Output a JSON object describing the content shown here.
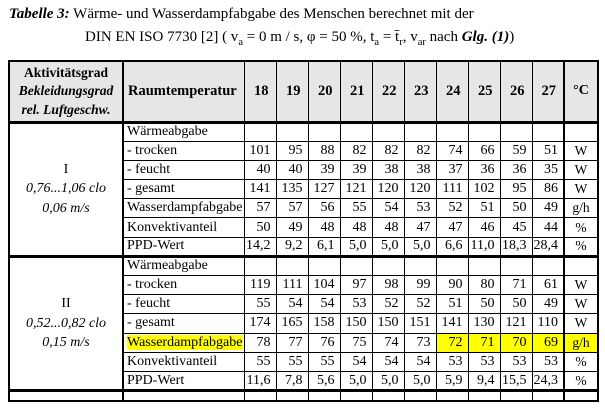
{
  "colors": {
    "highlight": "#ffff00",
    "header_bg": "#e6e6e6",
    "border": "#000000",
    "text": "#000000"
  },
  "title": {
    "label": "Tabelle 3:",
    "line1": " Wärme- und Wasserdampfabgabe des Menschen berechnet mit der",
    "line2_segments": [
      {
        "text": "DIN EN ISO 7730 [2] ( v"
      },
      {
        "sub": "a"
      },
      {
        "text": " = 0 m / s, φ = 50 %,  t"
      },
      {
        "sub": "a"
      },
      {
        "text": " = t̄"
      },
      {
        "sub": "r"
      },
      {
        "text": ",  v"
      },
      {
        "sub": "ar"
      },
      {
        "text": " nach "
      },
      {
        "bolditalic": "Glg. (1)"
      },
      {
        "text": ")"
      }
    ]
  },
  "table": {
    "header": {
      "activity_lines": [
        "Aktivitätsgrad",
        "Bekleidungsgrad",
        "rel. Luftgeschw."
      ],
      "room_temp_label": "Raumtemperatur",
      "temperatures": [
        "18",
        "19",
        "20",
        "21",
        "22",
        "23",
        "24",
        "25",
        "26",
        "27"
      ],
      "unit_label": "°C"
    },
    "sections": [
      {
        "activity_lines": [
          "I",
          "0,76...1,06 clo",
          "0,06 m/s"
        ],
        "rows": [
          {
            "label": "Wärmeabgabe",
            "values": [
              "",
              "",
              "",
              "",
              "",
              "",
              "",
              "",
              "",
              ""
            ],
            "unit": ""
          },
          {
            "label": "- trocken",
            "values": [
              "101",
              "95",
              "88",
              "82",
              "82",
              "82",
              "74",
              "66",
              "59",
              "51"
            ],
            "unit": "W"
          },
          {
            "label": "- feucht",
            "values": [
              "40",
              "40",
              "39",
              "39",
              "38",
              "38",
              "37",
              "36",
              "36",
              "35"
            ],
            "unit": "W"
          },
          {
            "label": "- gesamt",
            "values": [
              "141",
              "135",
              "127",
              "121",
              "120",
              "120",
              "111",
              "102",
              "95",
              "86"
            ],
            "unit": "W"
          },
          {
            "label": "Wasserdampfabgabe",
            "values": [
              "57",
              "57",
              "56",
              "55",
              "54",
              "53",
              "52",
              "51",
              "50",
              "49"
            ],
            "unit": "g/h"
          },
          {
            "label": "Konvektivanteil",
            "values": [
              "50",
              "49",
              "48",
              "48",
              "48",
              "47",
              "47",
              "46",
              "45",
              "44"
            ],
            "unit": "%"
          },
          {
            "label": "PPD-Wert",
            "values": [
              "14,2",
              "9,2",
              "6,1",
              "5,0",
              "5,0",
              "5,0",
              "6,6",
              "11,0",
              "18,3",
              "28,4"
            ],
            "unit": "%"
          }
        ]
      },
      {
        "activity_lines": [
          "II",
          "0,52...0,82 clo",
          "0,15 m/s"
        ],
        "rows": [
          {
            "label": "Wärmeabgabe",
            "values": [
              "",
              "",
              "",
              "",
              "",
              "",
              "",
              "",
              "",
              ""
            ],
            "unit": ""
          },
          {
            "label": "- trocken",
            "values": [
              "119",
              "111",
              "104",
              "97",
              "98",
              "99",
              "90",
              "80",
              "71",
              "61"
            ],
            "unit": "W"
          },
          {
            "label": "- feucht",
            "values": [
              "55",
              "54",
              "54",
              "53",
              "52",
              "52",
              "51",
              "50",
              "50",
              "49"
            ],
            "unit": "W"
          },
          {
            "label": "- gesamt",
            "values": [
              "174",
              "165",
              "158",
              "150",
              "150",
              "151",
              "141",
              "130",
              "121",
              "110"
            ],
            "unit": "W"
          },
          {
            "label": "Wasserdampfabgabe",
            "values": [
              "78",
              "77",
              "76",
              "75",
              "74",
              "73",
              "72",
              "71",
              "70",
              "69"
            ],
            "unit": "g/h",
            "highlight": {
              "label": true,
              "value_indices": [
                6,
                7,
                8,
                9
              ],
              "unit": true
            }
          },
          {
            "label": "Konvektivanteil",
            "values": [
              "55",
              "55",
              "55",
              "54",
              "54",
              "54",
              "53",
              "53",
              "53",
              "53"
            ],
            "unit": "%"
          },
          {
            "label": "PPD-Wert",
            "values": [
              "11,6",
              "7,8",
              "5,6",
              "5,0",
              "5,0",
              "5,0",
              "5,9",
              "9,4",
              "15,5",
              "24,3"
            ],
            "unit": "%"
          }
        ]
      }
    ]
  }
}
